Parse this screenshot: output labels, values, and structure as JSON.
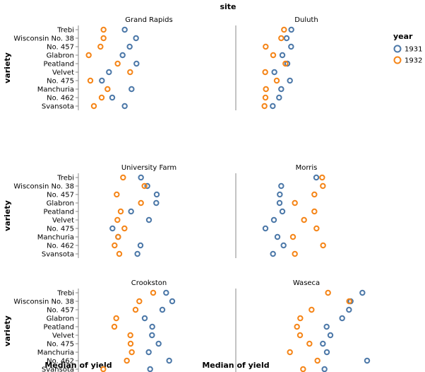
{
  "chart_data": {
    "type": "scatter",
    "column_header": "site",
    "xlabel": "Median of yield",
    "ylabel": "variety",
    "xlim": [
      10,
      70
    ],
    "x_ticks": [
      10,
      20,
      30,
      40,
      50,
      60,
      70
    ],
    "grid": true,
    "legend": {
      "title": "year",
      "position": "right",
      "entries": [
        {
          "label": "1931",
          "color": "#4c78a8"
        },
        {
          "label": "1932",
          "color": "#f58518"
        }
      ]
    },
    "varieties": [
      "Trebi",
      "Wisconsin No. 38",
      "No. 457",
      "Glabron",
      "Peatland",
      "Velvet",
      "No. 475",
      "Manchuria",
      "No. 462",
      "Svansota"
    ],
    "facets": [
      {
        "site": "Grand Rapids",
        "series": [
          {
            "year": "1931",
            "values": [
              29.7,
              34.5,
              31.8,
              28.8,
              34.7,
              23.0,
              20.0,
              32.6,
              24.4,
              29.7
            ]
          },
          {
            "year": "1932",
            "values": [
              20.7,
              20.7,
              19.4,
              14.4,
              26.7,
              32.0,
              15.1,
              22.4,
              19.9,
              16.6
            ]
          }
        ]
      },
      {
        "site": "Duluth",
        "series": [
          {
            "year": "1931",
            "values": [
              33.6,
              31.6,
              33.5,
              29.8,
              31.9,
              26.4,
              33.0,
              29.3,
              28.4,
              25.7
            ]
          },
          {
            "year": "1932",
            "values": [
              30.5,
              29.3,
              22.7,
              25.9,
              31.1,
              22.5,
              27.4,
              22.8,
              22.6,
              22.2
            ]
          }
        ]
      },
      {
        "site": "University Farm",
        "series": [
          {
            "year": "1931",
            "values": [
              36.6,
              39.3,
              43.3,
              43.1,
              32.4,
              40.0,
              24.5,
              26.9,
              36.4,
              35.1
            ]
          },
          {
            "year": "1932",
            "values": [
              29.0,
              38.1,
              26.3,
              36.6,
              28.0,
              26.6,
              29.6,
              26.9,
              25.4,
              27.4
            ]
          }
        ]
      },
      {
        "site": "Morris",
        "series": [
          {
            "year": "1931",
            "values": [
              44.2,
              29.3,
              28.7,
              28.6,
              29.8,
              26.2,
              22.6,
              27.7,
              30.3,
              25.8
            ]
          },
          {
            "year": "1932",
            "values": [
              46.7,
              47.0,
              43.4,
              35.1,
              43.4,
              39.0,
              44.3,
              34.3,
              47.1,
              35.1
            ]
          }
        ]
      },
      {
        "site": "Crookston",
        "series": [
          {
            "year": "1931",
            "values": [
              47.3,
              49.9,
              45.7,
              38.2,
              41.4,
              41.3,
              44.1,
              39.9,
              48.6,
              40.5
            ]
          },
          {
            "year": "1932",
            "values": [
              41.8,
              35.9,
              34.3,
              26.1,
              25.3,
              32.1,
              32.2,
              32.7,
              30.6,
              20.6
            ]
          }
        ]
      },
      {
        "site": "Waseca",
        "series": [
          {
            "year": "1931",
            "values": [
              63.8,
              58.8,
              58.1,
              55.2,
              48.6,
              50.2,
              47.0,
              48.7,
              65.8,
              47.7
            ]
          },
          {
            "year": "1932",
            "values": [
              49.2,
              58.2,
              42.2,
              37.4,
              36.0,
              37.3,
              41.3,
              33.0,
              44.7,
              38.6
            ]
          }
        ]
      }
    ]
  }
}
